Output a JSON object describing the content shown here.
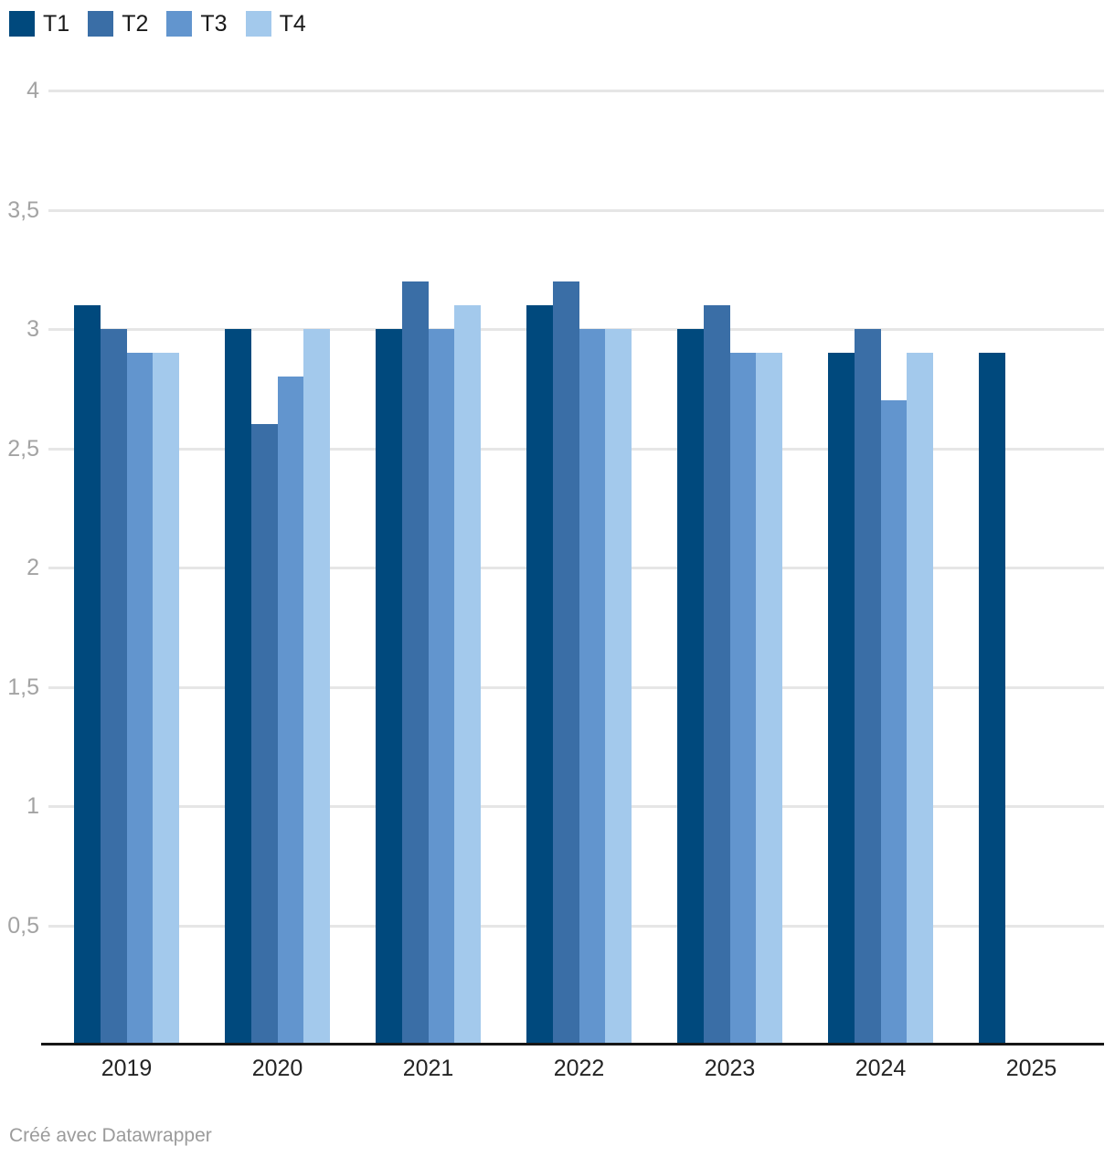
{
  "footer": {
    "attribution": "Créé avec Datawrapper"
  },
  "chart_data": {
    "type": "bar",
    "title": "",
    "xlabel": "",
    "ylabel": "",
    "categories": [
      "2019",
      "2020",
      "2021",
      "2022",
      "2023",
      "2024",
      "2025"
    ],
    "series": [
      {
        "name": "T1",
        "color": "#00497d",
        "values": [
          3.1,
          3.0,
          3.0,
          3.1,
          3.0,
          2.9,
          2.9
        ]
      },
      {
        "name": "T2",
        "color": "#3a6ea6",
        "values": [
          3.0,
          2.6,
          3.2,
          3.2,
          3.1,
          3.0,
          null
        ]
      },
      {
        "name": "T3",
        "color": "#6295ce",
        "values": [
          2.9,
          2.8,
          3.0,
          3.0,
          2.9,
          2.7,
          null
        ]
      },
      {
        "name": "T4",
        "color": "#a3c9ec",
        "values": [
          2.9,
          3.0,
          3.1,
          3.0,
          2.9,
          2.9,
          null
        ]
      }
    ],
    "ylim": [
      0,
      4
    ],
    "yticks": [
      {
        "value": 0.5,
        "label": "0,5"
      },
      {
        "value": 1,
        "label": "1"
      },
      {
        "value": 1.5,
        "label": "1,5"
      },
      {
        "value": 2,
        "label": "2"
      },
      {
        "value": 2.5,
        "label": "2,5"
      },
      {
        "value": 3,
        "label": "3"
      },
      {
        "value": 3.5,
        "label": "3,5"
      },
      {
        "value": 4,
        "label": "4"
      }
    ],
    "grid": true,
    "legend_position": "top-left",
    "number_format": "decimal-comma"
  }
}
